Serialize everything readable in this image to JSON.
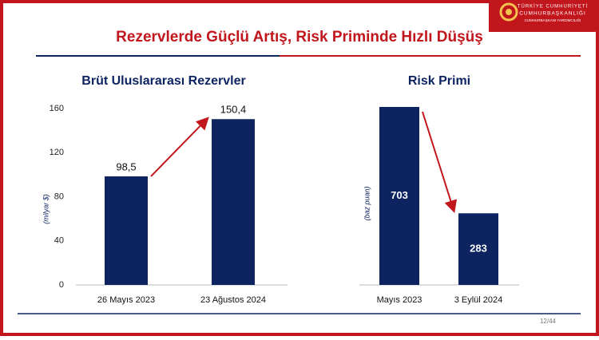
{
  "header": {
    "title": "Rezervlerde Güçlü Artış, Risk Priminde Hızlı Düşüş",
    "org": [
      "TÜRKİYE CUMHURİYETİ",
      "CUMHURBAŞKANLIĞI",
      "CUMHURBAŞKANI YARDIMCILIĞI"
    ]
  },
  "page_number": "12/44",
  "chart_data": [
    {
      "type": "bar",
      "title": "Brüt Uluslararası Rezervler",
      "y_label": "(milyar $)",
      "categories": [
        "26 Mayıs 2023",
        "23 Ağustos 2024"
      ],
      "values": [
        98.5,
        150.4
      ],
      "value_labels": [
        "98,5",
        "150,4"
      ],
      "value_label_position": "above",
      "color": "#0d2461",
      "ylim": [
        0,
        160
      ],
      "yticks": [
        0,
        40,
        80,
        120,
        160
      ],
      "arrow_color": "#c0161c"
    },
    {
      "type": "bar",
      "title": "Risk Primi",
      "y_label": "(baz puan)",
      "categories": [
        "Mayıs 2023",
        "3 Eylül 2024"
      ],
      "values": [
        703,
        283
      ],
      "value_label_position": "inside",
      "color": "#0d2461",
      "arrow_color": "#c0161c"
    }
  ]
}
